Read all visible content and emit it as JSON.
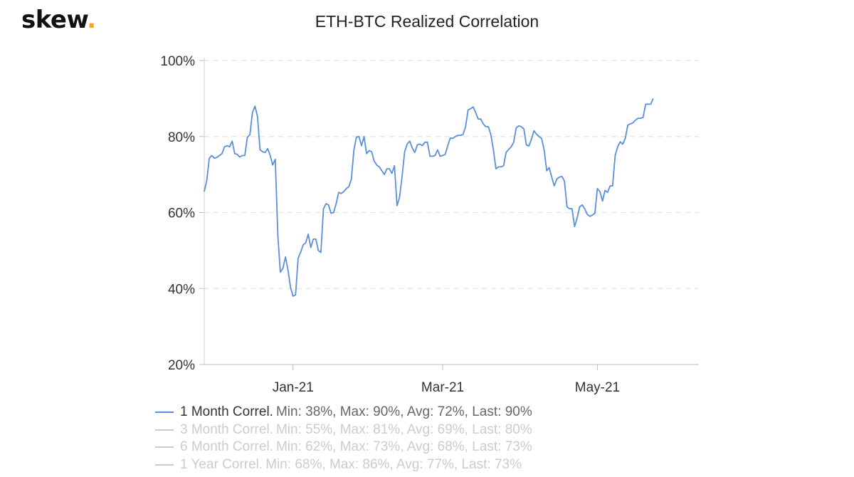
{
  "brand": {
    "name": "skew",
    "dot": ".",
    "dot_color": "#f5a623"
  },
  "chart_data": {
    "type": "line",
    "title": "ETH-BTC Realized Correlation",
    "xlabel": "",
    "ylabel": "",
    "ylim": [
      20,
      100
    ],
    "y_ticks": [
      20,
      40,
      60,
      80,
      100
    ],
    "y_tick_labels": [
      "20%",
      "40%",
      "60%",
      "80%",
      "100%"
    ],
    "x_range": [
      "2020-11-27",
      "2021-06-10"
    ],
    "x_ticks": [
      {
        "date": "2021-01-01",
        "label": "Jan-21"
      },
      {
        "date": "2021-03-01",
        "label": "Mar-21"
      },
      {
        "date": "2021-05-01",
        "label": "May-21"
      }
    ],
    "grid": "horizontal dashed",
    "legend_position": "bottom-left",
    "line_color": "#5b8fd9",
    "inactive_color": "#cccccc",
    "series": [
      {
        "name": "1 Month Correl.",
        "stats": "Min: 38%, Max: 90%, Avg: 72%, Last: 90%",
        "active": true,
        "points": [
          [
            "2020-11-27",
            65.5
          ],
          [
            "2020-11-28",
            68.5
          ],
          [
            "2020-11-29",
            74.3
          ],
          [
            "2020-11-30",
            75
          ],
          [
            "2020-12-01",
            74.3
          ],
          [
            "2020-12-02",
            74.5
          ],
          [
            "2020-12-03",
            75
          ],
          [
            "2020-12-04",
            75.5
          ],
          [
            "2020-12-05",
            77.3
          ],
          [
            "2020-12-06",
            77.6
          ],
          [
            "2020-12-07",
            77.3
          ],
          [
            "2020-12-08",
            78.8
          ],
          [
            "2020-12-09",
            75.5
          ],
          [
            "2020-12-10",
            75.3
          ],
          [
            "2020-12-11",
            74.6
          ],
          [
            "2020-12-12",
            75
          ],
          [
            "2020-12-13",
            75
          ],
          [
            "2020-12-14",
            79.8
          ],
          [
            "2020-12-15",
            80.5
          ],
          [
            "2020-12-16",
            86.3
          ],
          [
            "2020-12-17",
            88
          ],
          [
            "2020-12-18",
            85.3
          ],
          [
            "2020-12-19",
            76.5
          ],
          [
            "2020-12-20",
            76
          ],
          [
            "2020-12-21",
            75.8
          ],
          [
            "2020-12-22",
            76.8
          ],
          [
            "2020-12-23",
            75
          ],
          [
            "2020-12-24",
            72.5
          ],
          [
            "2020-12-25",
            74
          ],
          [
            "2020-12-26",
            54
          ],
          [
            "2020-12-27",
            44.3
          ],
          [
            "2020-12-28",
            45.3
          ],
          [
            "2020-12-29",
            48.3
          ],
          [
            "2020-12-30",
            45
          ],
          [
            "2020-12-31",
            40.3
          ],
          [
            "2021-01-01",
            38
          ],
          [
            "2021-01-02",
            38.3
          ],
          [
            "2021-01-03",
            48
          ],
          [
            "2021-01-04",
            49.5
          ],
          [
            "2021-01-05",
            51.5
          ],
          [
            "2021-01-06",
            52
          ],
          [
            "2021-01-07",
            54.3
          ],
          [
            "2021-01-08",
            50.8
          ],
          [
            "2021-01-09",
            53
          ],
          [
            "2021-01-10",
            53
          ],
          [
            "2021-01-11",
            50
          ],
          [
            "2021-01-12",
            49.5
          ],
          [
            "2021-01-13",
            61
          ],
          [
            "2021-01-14",
            62.3
          ],
          [
            "2021-01-15",
            62
          ],
          [
            "2021-01-16",
            59.8
          ],
          [
            "2021-01-17",
            60
          ],
          [
            "2021-01-18",
            62.3
          ],
          [
            "2021-01-19",
            65.3
          ],
          [
            "2021-01-20",
            65
          ],
          [
            "2021-01-21",
            65.5
          ],
          [
            "2021-01-22",
            66.3
          ],
          [
            "2021-01-23",
            66.8
          ],
          [
            "2021-01-24",
            68.8
          ],
          [
            "2021-01-25",
            76.5
          ],
          [
            "2021-01-26",
            79.8
          ],
          [
            "2021-01-27",
            80
          ],
          [
            "2021-01-28",
            77.6
          ],
          [
            "2021-01-29",
            80
          ],
          [
            "2021-01-30",
            75.5
          ],
          [
            "2021-01-31",
            76.3
          ],
          [
            "2021-02-01",
            76
          ],
          [
            "2021-02-02",
            73.5
          ],
          [
            "2021-02-03",
            72.5
          ],
          [
            "2021-02-04",
            72
          ],
          [
            "2021-02-05",
            71
          ],
          [
            "2021-02-06",
            70
          ],
          [
            "2021-02-07",
            71.5
          ],
          [
            "2021-02-08",
            71.5
          ],
          [
            "2021-02-09",
            70.3
          ],
          [
            "2021-02-10",
            72.3
          ],
          [
            "2021-02-11",
            61.8
          ],
          [
            "2021-02-12",
            64
          ],
          [
            "2021-02-13",
            69.5
          ],
          [
            "2021-02-14",
            76
          ],
          [
            "2021-02-15",
            78
          ],
          [
            "2021-02-16",
            78.8
          ],
          [
            "2021-02-17",
            77
          ],
          [
            "2021-02-18",
            75.8
          ],
          [
            "2021-02-19",
            77.8
          ],
          [
            "2021-02-20",
            78
          ],
          [
            "2021-02-21",
            77.6
          ],
          [
            "2021-02-22",
            78.5
          ],
          [
            "2021-02-23",
            78.5
          ],
          [
            "2021-02-24",
            74.8
          ],
          [
            "2021-02-25",
            74.8
          ],
          [
            "2021-02-26",
            75
          ],
          [
            "2021-02-27",
            76.5
          ],
          [
            "2021-02-28",
            74.8
          ],
          [
            "2021-03-01",
            75
          ],
          [
            "2021-03-02",
            75.3
          ],
          [
            "2021-03-03",
            77.6
          ],
          [
            "2021-03-04",
            79.6
          ],
          [
            "2021-03-05",
            79.5
          ],
          [
            "2021-03-06",
            80
          ],
          [
            "2021-03-07",
            80.3
          ],
          [
            "2021-03-08",
            80.3
          ],
          [
            "2021-03-09",
            80.5
          ],
          [
            "2021-03-10",
            82.5
          ],
          [
            "2021-03-11",
            87
          ],
          [
            "2021-03-12",
            87.3
          ],
          [
            "2021-03-13",
            87.8
          ],
          [
            "2021-03-14",
            86.3
          ],
          [
            "2021-03-15",
            84.6
          ],
          [
            "2021-03-16",
            84.6
          ],
          [
            "2021-03-17",
            83.3
          ],
          [
            "2021-03-18",
            82.6
          ],
          [
            "2021-03-19",
            82.6
          ],
          [
            "2021-03-20",
            80.5
          ],
          [
            "2021-03-21",
            76.5
          ],
          [
            "2021-03-22",
            71.5
          ],
          [
            "2021-03-23",
            72
          ],
          [
            "2021-03-24",
            72
          ],
          [
            "2021-03-25",
            72.3
          ],
          [
            "2021-03-26",
            75.8
          ],
          [
            "2021-03-27",
            76.6
          ],
          [
            "2021-03-28",
            77.3
          ],
          [
            "2021-03-29",
            78.5
          ],
          [
            "2021-03-30",
            82.3
          ],
          [
            "2021-03-31",
            82.8
          ],
          [
            "2021-04-01",
            82.6
          ],
          [
            "2021-04-02",
            82
          ],
          [
            "2021-04-03",
            77.8
          ],
          [
            "2021-04-04",
            77.5
          ],
          [
            "2021-04-05",
            79.3
          ],
          [
            "2021-04-06",
            81.5
          ],
          [
            "2021-04-07",
            80.6
          ],
          [
            "2021-04-08",
            80
          ],
          [
            "2021-04-09",
            79.5
          ],
          [
            "2021-04-10",
            76.5
          ],
          [
            "2021-04-11",
            71
          ],
          [
            "2021-04-12",
            71.8
          ],
          [
            "2021-04-13",
            69.3
          ],
          [
            "2021-04-14",
            67
          ],
          [
            "2021-04-15",
            68.8
          ],
          [
            "2021-04-16",
            69.3
          ],
          [
            "2021-04-17",
            69.5
          ],
          [
            "2021-04-18",
            68.3
          ],
          [
            "2021-04-19",
            61.5
          ],
          [
            "2021-04-20",
            61
          ],
          [
            "2021-04-21",
            61
          ],
          [
            "2021-04-22",
            56.3
          ],
          [
            "2021-04-23",
            58.5
          ],
          [
            "2021-04-24",
            61.5
          ],
          [
            "2021-04-25",
            62
          ],
          [
            "2021-04-26",
            61
          ],
          [
            "2021-04-27",
            59.5
          ],
          [
            "2021-04-28",
            59
          ],
          [
            "2021-04-29",
            59.3
          ],
          [
            "2021-04-30",
            59.8
          ],
          [
            "2021-05-01",
            66.3
          ],
          [
            "2021-05-02",
            65.5
          ],
          [
            "2021-05-03",
            63
          ],
          [
            "2021-05-04",
            65.8
          ],
          [
            "2021-05-05",
            65.3
          ],
          [
            "2021-05-06",
            67
          ],
          [
            "2021-05-07",
            67
          ],
          [
            "2021-05-08",
            75
          ],
          [
            "2021-05-09",
            77.3
          ],
          [
            "2021-05-10",
            78.6
          ],
          [
            "2021-05-11",
            78
          ],
          [
            "2021-05-12",
            79.5
          ],
          [
            "2021-05-13",
            83
          ],
          [
            "2021-05-14",
            83.3
          ],
          [
            "2021-05-15",
            83.6
          ],
          [
            "2021-05-16",
            84.3
          ],
          [
            "2021-05-17",
            84.8
          ],
          [
            "2021-05-18",
            84.8
          ],
          [
            "2021-05-19",
            85
          ],
          [
            "2021-05-20",
            88.5
          ],
          [
            "2021-05-21",
            88.5
          ],
          [
            "2021-05-22",
            88.5
          ],
          [
            "2021-05-23",
            90
          ]
        ]
      },
      {
        "name": "3 Month Correl.",
        "stats": "Min: 55%, Max: 81%, Avg: 69%, Last: 80%",
        "active": false
      },
      {
        "name": "6 Month Correl.",
        "stats": "Min: 62%, Max: 73%, Avg: 68%, Last: 73%",
        "active": false
      },
      {
        "name": "1 Year Correl.",
        "stats": "Min: 68%, Max: 86%, Avg: 77%, Last: 73%",
        "active": false
      }
    ]
  }
}
